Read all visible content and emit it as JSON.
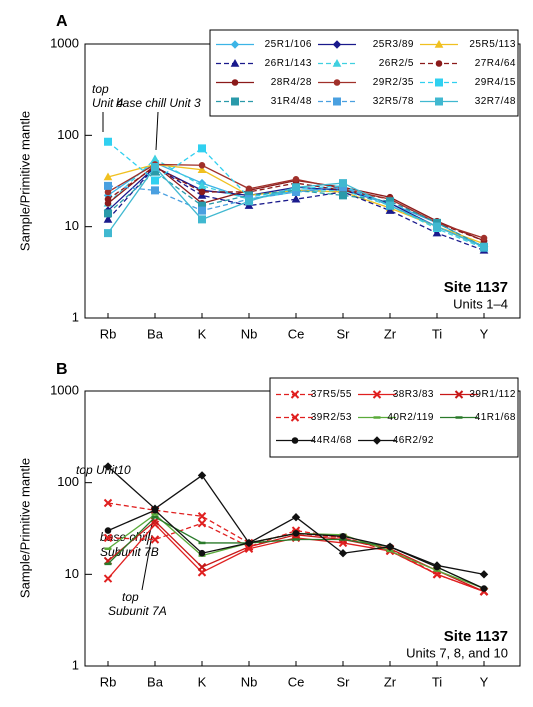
{
  "chart_data": [
    {
      "type": "line",
      "panel_label": "A",
      "y_label": "Sample/Primitive mantle",
      "log_scale": true,
      "ylim": [
        1,
        1000
      ],
      "yticks": [
        1,
        10,
        100,
        1000
      ],
      "categories": [
        "Rb",
        "Ba",
        "K",
        "Nb",
        "Ce",
        "Sr",
        "Zr",
        "Ti",
        "Y"
      ],
      "site_label": "Site 1137",
      "site_sublabel": "Units 1–4",
      "annotations": [
        "top",
        "Unit 4",
        "base chill Unit 3"
      ],
      "series": [
        {
          "name": "25R1/106",
          "color": "#3cb4e6",
          "marker": "diamond",
          "dashed": false,
          "values": [
            22,
            50,
            30,
            20,
            25,
            26,
            18,
            11,
            6
          ]
        },
        {
          "name": "25R3/89",
          "color": "#1a1a8c",
          "marker": "diamond",
          "dashed": false,
          "values": [
            15,
            45,
            25,
            22,
            27,
            25,
            18,
            10,
            6
          ]
        },
        {
          "name": "25R5/113",
          "color": "#f0c020",
          "marker": "triangle",
          "dashed": false,
          "values": [
            35,
            48,
            42,
            22,
            25,
            24,
            16,
            10,
            6.5
          ]
        },
        {
          "name": "26R1/143",
          "color": "#1a1a8c",
          "marker": "triangle",
          "dashed": true,
          "values": [
            12,
            45,
            22,
            17,
            20,
            24,
            15,
            8.5,
            5.5
          ]
        },
        {
          "name": "26R2/5",
          "color": "#40d0e0",
          "marker": "triangle",
          "dashed": true,
          "values": [
            18,
            55,
            28,
            20,
            24,
            25,
            17,
            9.5,
            5.8
          ]
        },
        {
          "name": "27R4/64",
          "color": "#8b1a1a",
          "marker": "circle",
          "dashed": true,
          "values": [
            20,
            45,
            24,
            24,
            30,
            25,
            20,
            11,
            7
          ]
        },
        {
          "name": "28R4/28",
          "color": "#8b1a1a",
          "marker": "circle",
          "dashed": false,
          "values": [
            18,
            47,
            18,
            25,
            32,
            27,
            21,
            11.5,
            7
          ]
        },
        {
          "name": "29R2/35",
          "color": "#a0302a",
          "marker": "circle",
          "dashed": false,
          "values": [
            24,
            48,
            47,
            26,
            33,
            26,
            20,
            11,
            7.5
          ]
        },
        {
          "name": "29R4/15",
          "color": "#30d0f0",
          "marker": "square",
          "dashed": true,
          "values": [
            85,
            32,
            72,
            21,
            26,
            28,
            17,
            10,
            6
          ]
        },
        {
          "name": "31R4/48",
          "color": "#2a9aaa",
          "marker": "square",
          "dashed": true,
          "values": [
            14,
            40,
            17,
            22,
            25,
            22,
            19,
            11,
            6
          ]
        },
        {
          "name": "32R5/78",
          "color": "#4aa0e0",
          "marker": "square",
          "dashed": true,
          "values": [
            28,
            25,
            15,
            20,
            24,
            27,
            17,
            10,
            6
          ]
        },
        {
          "name": "32R7/48",
          "color": "#40b8d0",
          "marker": "square",
          "dashed": false,
          "values": [
            8.5,
            45,
            12,
            19,
            27,
            30,
            17,
            10,
            6
          ]
        }
      ]
    },
    {
      "type": "line",
      "panel_label": "B",
      "y_label": "Sample/Primitive mantle",
      "log_scale": true,
      "ylim": [
        1,
        1000
      ],
      "yticks": [
        1,
        10,
        100,
        1000
      ],
      "categories": [
        "Rb",
        "Ba",
        "K",
        "Nb",
        "Ce",
        "Sr",
        "Zr",
        "Ti",
        "Y"
      ],
      "site_label": "Site 1137",
      "site_sublabel": "Units 7, 8, and 10",
      "annotations": [
        "top Unit10",
        "base chill",
        "Subunit 7B",
        "top",
        "Subunit 7A"
      ],
      "series": [
        {
          "name": "37R5/55",
          "color": "#e02020",
          "marker": "x",
          "dashed": true,
          "values": [
            60,
            50,
            43,
            22,
            28,
            25,
            18,
            10,
            6.5
          ]
        },
        {
          "name": "38R3/83",
          "color": "#e02020",
          "marker": "x",
          "dashed": false,
          "values": [
            9,
            35,
            10.5,
            19,
            25,
            22,
            18,
            10,
            6.5
          ]
        },
        {
          "name": "39R1/112",
          "color": "#c81818",
          "marker": "x",
          "dashed": false,
          "values": [
            14,
            38,
            12,
            20,
            27,
            24,
            19,
            11,
            6.5
          ]
        },
        {
          "name": "39R2/53",
          "color": "#e02020",
          "marker": "x",
          "dashed": true,
          "values": [
            25,
            24,
            36,
            20,
            30,
            25,
            19,
            10,
            6.5
          ]
        },
        {
          "name": "40R2/119",
          "color": "#5aaa3a",
          "marker": "dash",
          "dashed": false,
          "values": [
            19,
            45,
            16,
            22,
            28,
            27,
            18,
            11,
            7
          ]
        },
        {
          "name": "41R1/68",
          "color": "#2a7a2a",
          "marker": "dash",
          "dashed": false,
          "values": [
            13,
            42,
            22,
            22,
            24,
            24,
            20,
            12,
            7
          ]
        },
        {
          "name": "44R4/68",
          "color": "#111111",
          "marker": "circle",
          "dashed": false,
          "values": [
            30,
            50,
            17,
            22,
            28,
            26,
            20,
            12,
            7
          ]
        },
        {
          "name": "46R2/92",
          "color": "#111111",
          "marker": "diamond",
          "dashed": false,
          "values": [
            150,
            52,
            120,
            22,
            42,
            17,
            20,
            12.5,
            10
          ]
        }
      ]
    }
  ]
}
